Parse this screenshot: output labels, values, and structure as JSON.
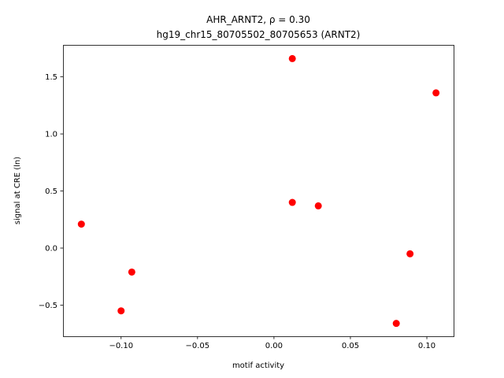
{
  "chart_data": {
    "type": "scatter",
    "title": "AHR_ARNT2, ρ = 0.30",
    "subtitle": "hg19_chr15_80705502_80705653 (ARNT2)",
    "xlabel": "motif activity",
    "ylabel": "signal at CRE (ln)",
    "xlim": [
      -0.138,
      0.1175
    ],
    "ylim": [
      -0.774,
      1.776
    ],
    "xticks": [
      -0.1,
      -0.05,
      0.0,
      0.05,
      0.1
    ],
    "xtick_labels": [
      "−0.10",
      "−0.05",
      "0.00",
      "0.05",
      "0.10"
    ],
    "yticks": [
      -0.5,
      0.0,
      0.5,
      1.0,
      1.5
    ],
    "ytick_labels": [
      "−0.5",
      "0.0",
      "0.5",
      "1.0",
      "1.5"
    ],
    "grid": false,
    "marker_color": "#ff0000",
    "points": [
      {
        "x": -0.126,
        "y": 0.21
      },
      {
        "x": -0.1,
        "y": -0.55
      },
      {
        "x": -0.093,
        "y": -0.21
      },
      {
        "x": 0.012,
        "y": 1.66
      },
      {
        "x": 0.012,
        "y": 0.4
      },
      {
        "x": 0.029,
        "y": 0.37
      },
      {
        "x": 0.089,
        "y": -0.05
      },
      {
        "x": 0.08,
        "y": -0.66
      },
      {
        "x": 0.106,
        "y": 1.36
      }
    ]
  }
}
